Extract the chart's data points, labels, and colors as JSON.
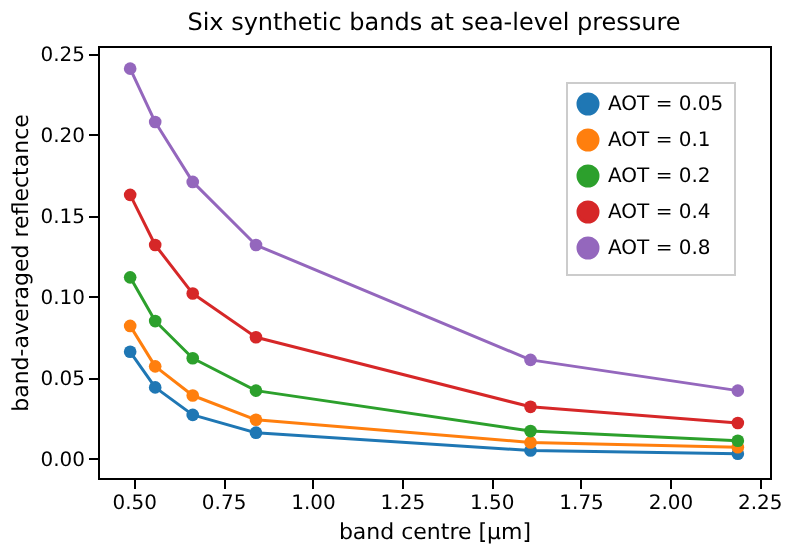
{
  "chart_data": {
    "type": "line",
    "title": "Six synthetic bands at sea-level pressure",
    "xlabel": "band centre [μm]",
    "ylabel": "band-averaged reflectance",
    "x": [
      0.49,
      0.56,
      0.665,
      0.842,
      1.61,
      2.19
    ],
    "series": [
      {
        "name": "AOT = 0.05",
        "color": "#1f77b4",
        "values": [
          0.066,
          0.044,
          0.027,
          0.016,
          0.005,
          0.003
        ]
      },
      {
        "name": "AOT = 0.1",
        "color": "#ff7f0e",
        "values": [
          0.082,
          0.057,
          0.039,
          0.024,
          0.01,
          0.007
        ]
      },
      {
        "name": "AOT = 0.2",
        "color": "#2ca02c",
        "values": [
          0.112,
          0.085,
          0.062,
          0.042,
          0.017,
          0.011
        ]
      },
      {
        "name": "AOT = 0.4",
        "color": "#d62728",
        "values": [
          0.163,
          0.132,
          0.102,
          0.075,
          0.032,
          0.022
        ]
      },
      {
        "name": "AOT = 0.8",
        "color": "#9467bd",
        "values": [
          0.241,
          0.208,
          0.171,
          0.132,
          0.061,
          0.042
        ]
      }
    ],
    "xlim": [
      0.4,
      2.28
    ],
    "xticks": [
      {
        "value": 0.5,
        "label": "0.50"
      },
      {
        "value": 0.75,
        "label": "0.75"
      },
      {
        "value": 1.0,
        "label": "1.00"
      },
      {
        "value": 1.25,
        "label": "1.25"
      },
      {
        "value": 1.5,
        "label": "1.50"
      },
      {
        "value": 1.75,
        "label": "1.75"
      },
      {
        "value": 2.0,
        "label": "2.00"
      },
      {
        "value": 2.25,
        "label": "2.25"
      }
    ],
    "ylim": [
      -0.012,
      0.255
    ],
    "yticks": [
      {
        "value": 0,
        "label": "0.00"
      },
      {
        "value": 0.05,
        "label": "0.05"
      },
      {
        "value": 0.1,
        "label": "0.10"
      },
      {
        "value": 0.15,
        "label": "0.15"
      },
      {
        "value": 0.2,
        "label": "0.20"
      },
      {
        "value": 0.25,
        "label": "0.25"
      }
    ],
    "legend": "top right",
    "marker": "circle",
    "line_style": "solid",
    "grid": false
  }
}
